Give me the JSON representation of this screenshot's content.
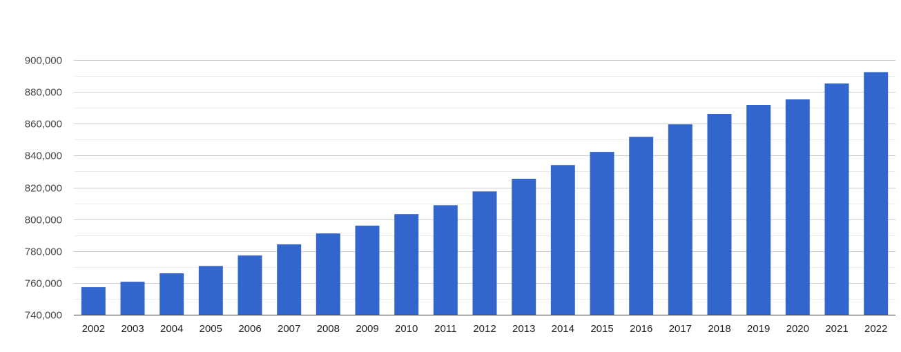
{
  "chart_data": {
    "type": "bar",
    "title": "",
    "xlabel": "",
    "ylabel": "",
    "categories": [
      "2002",
      "2003",
      "2004",
      "2005",
      "2006",
      "2007",
      "2008",
      "2009",
      "2010",
      "2011",
      "2012",
      "2013",
      "2014",
      "2015",
      "2016",
      "2017",
      "2018",
      "2019",
      "2020",
      "2021",
      "2022"
    ],
    "values": [
      757300,
      760700,
      766000,
      770600,
      777200,
      784200,
      791100,
      796000,
      803200,
      808800,
      817500,
      825400,
      834000,
      842300,
      851800,
      859600,
      866200,
      871800,
      875300,
      885300,
      892400
    ],
    "ylim": [
      740000,
      900000
    ],
    "y_ticks": [
      740000,
      760000,
      780000,
      800000,
      820000,
      840000,
      860000,
      880000,
      900000
    ],
    "y_tick_labels": [
      "740,000",
      "760,000",
      "780,000",
      "800,000",
      "820,000",
      "840,000",
      "860,000",
      "880,000",
      "900,000"
    ],
    "grid": true,
    "minor_grid": true,
    "legend": "none",
    "colors": {
      "bar": "#3366cc",
      "grid_major": "#cccccc",
      "grid_minor": "#ebebeb",
      "axis": "#333333",
      "text": "#444444"
    }
  }
}
